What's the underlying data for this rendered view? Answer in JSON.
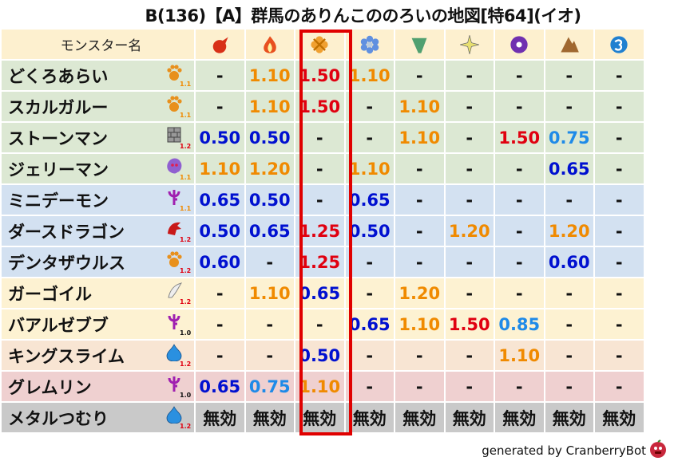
{
  "title": "B(136)【A】群馬のありんこののろいの地図[特64](イオ)",
  "header": {
    "name_label": "モンスター名",
    "elements": [
      "fire-ball-icon",
      "flame-icon",
      "explosion-icon",
      "ice-icon",
      "wind-icon",
      "light-icon",
      "dark-icon",
      "earth-icon",
      "water-icon"
    ],
    "element_colors": [
      "#d83018",
      "#e85020",
      "#f0a030",
      "#6090e0",
      "#50a070",
      "#e8e070",
      "#7030b0",
      "#a06830",
      "#2080d0"
    ],
    "highlighted_column": 2
  },
  "colors": {
    "o": "#f08a00",
    "r": "#e00010",
    "b": "#0010d0",
    "lb": "#1e8ae8",
    "k": "#111111"
  },
  "row_colors": {
    "green": "#dce8d3",
    "blue": "#d3e1f1",
    "yellow": "#fdf2d2",
    "peach": "#f8e5d3",
    "pink": "#efd0d0",
    "gray": "#c9c9c9"
  },
  "rows": [
    {
      "name": "どくろあらい",
      "type": "paw",
      "lvl": "1.1",
      "lvlc": "o",
      "bg": "green",
      "cells": [
        [
          "-",
          "k"
        ],
        [
          "1.10",
          "o"
        ],
        [
          "1.50",
          "r"
        ],
        [
          "1.10",
          "o"
        ],
        [
          "-",
          "k"
        ],
        [
          "-",
          "k"
        ],
        [
          "-",
          "k"
        ],
        [
          "-",
          "k"
        ],
        [
          "-",
          "k"
        ]
      ]
    },
    {
      "name": "スカルガルー",
      "type": "paw",
      "lvl": "1.1",
      "lvlc": "o",
      "bg": "green",
      "cells": [
        [
          "-",
          "k"
        ],
        [
          "1.10",
          "o"
        ],
        [
          "1.50",
          "r"
        ],
        [
          "-",
          "k"
        ],
        [
          "1.10",
          "o"
        ],
        [
          "-",
          "k"
        ],
        [
          "-",
          "k"
        ],
        [
          "-",
          "k"
        ],
        [
          "-",
          "k"
        ]
      ]
    },
    {
      "name": "ストーンマン",
      "type": "brick",
      "lvl": "1.2",
      "lvlc": "r",
      "bg": "green",
      "cells": [
        [
          "0.50",
          "b"
        ],
        [
          "0.50",
          "b"
        ],
        [
          "-",
          "k"
        ],
        [
          "-",
          "k"
        ],
        [
          "1.10",
          "o"
        ],
        [
          "-",
          "k"
        ],
        [
          "1.50",
          "r"
        ],
        [
          "0.75",
          "lb"
        ],
        [
          "-",
          "k"
        ]
      ]
    },
    {
      "name": "ジェリーマン",
      "type": "jelly",
      "lvl": "1.1",
      "lvlc": "o",
      "bg": "green",
      "cells": [
        [
          "1.10",
          "o"
        ],
        [
          "1.20",
          "o"
        ],
        [
          "-",
          "k"
        ],
        [
          "1.10",
          "o"
        ],
        [
          "-",
          "k"
        ],
        [
          "-",
          "k"
        ],
        [
          "-",
          "k"
        ],
        [
          "0.65",
          "b"
        ],
        [
          "-",
          "k"
        ]
      ]
    },
    {
      "name": "ミニデーモン",
      "type": "trident",
      "lvl": "1.1",
      "lvlc": "o",
      "bg": "blue",
      "cells": [
        [
          "0.65",
          "b"
        ],
        [
          "0.50",
          "b"
        ],
        [
          "-",
          "k"
        ],
        [
          "0.65",
          "b"
        ],
        [
          "-",
          "k"
        ],
        [
          "-",
          "k"
        ],
        [
          "-",
          "k"
        ],
        [
          "-",
          "k"
        ],
        [
          "-",
          "k"
        ]
      ]
    },
    {
      "name": "ダースドラゴン",
      "type": "dragon",
      "lvl": "1.2",
      "lvlc": "r",
      "bg": "blue",
      "cells": [
        [
          "0.50",
          "b"
        ],
        [
          "0.65",
          "b"
        ],
        [
          "1.25",
          "r"
        ],
        [
          "0.50",
          "b"
        ],
        [
          "-",
          "k"
        ],
        [
          "1.20",
          "o"
        ],
        [
          "-",
          "k"
        ],
        [
          "1.20",
          "o"
        ],
        [
          "-",
          "k"
        ]
      ]
    },
    {
      "name": "デンタザウルス",
      "type": "paw",
      "lvl": "1.2",
      "lvlc": "r",
      "bg": "blue",
      "cells": [
        [
          "0.60",
          "b"
        ],
        [
          "-",
          "k"
        ],
        [
          "1.25",
          "r"
        ],
        [
          "-",
          "k"
        ],
        [
          "-",
          "k"
        ],
        [
          "-",
          "k"
        ],
        [
          "-",
          "k"
        ],
        [
          "0.60",
          "b"
        ],
        [
          "-",
          "k"
        ]
      ]
    },
    {
      "name": "ガーゴイル",
      "type": "wing",
      "lvl": "1.2",
      "lvlc": "r",
      "bg": "yellow",
      "cells": [
        [
          "-",
          "k"
        ],
        [
          "1.10",
          "o"
        ],
        [
          "0.65",
          "b"
        ],
        [
          "-",
          "k"
        ],
        [
          "1.20",
          "o"
        ],
        [
          "-",
          "k"
        ],
        [
          "-",
          "k"
        ],
        [
          "-",
          "k"
        ],
        [
          "-",
          "k"
        ]
      ]
    },
    {
      "name": "バアルゼブブ",
      "type": "trident",
      "lvl": "1.0",
      "lvlc": "k",
      "bg": "yellow",
      "cells": [
        [
          "-",
          "k"
        ],
        [
          "-",
          "k"
        ],
        [
          "-",
          "k"
        ],
        [
          "0.65",
          "b"
        ],
        [
          "1.10",
          "o"
        ],
        [
          "1.50",
          "r"
        ],
        [
          "0.85",
          "lb"
        ],
        [
          "-",
          "k"
        ],
        [
          "-",
          "k"
        ]
      ]
    },
    {
      "name": "キングスライム",
      "type": "drop",
      "lvl": "1.2",
      "lvlc": "r",
      "bg": "peach",
      "cells": [
        [
          "-",
          "k"
        ],
        [
          "-",
          "k"
        ],
        [
          "0.50",
          "b"
        ],
        [
          "-",
          "k"
        ],
        [
          "-",
          "k"
        ],
        [
          "-",
          "k"
        ],
        [
          "1.10",
          "o"
        ],
        [
          "-",
          "k"
        ],
        [
          "-",
          "k"
        ]
      ]
    },
    {
      "name": "グレムリン",
      "type": "trident",
      "lvl": "1.0",
      "lvlc": "k",
      "bg": "pink",
      "cells": [
        [
          "0.65",
          "b"
        ],
        [
          "0.75",
          "lb"
        ],
        [
          "1.10",
          "o"
        ],
        [
          "-",
          "k"
        ],
        [
          "-",
          "k"
        ],
        [
          "-",
          "k"
        ],
        [
          "-",
          "k"
        ],
        [
          "-",
          "k"
        ],
        [
          "-",
          "k"
        ]
      ]
    },
    {
      "name": "メタルつむり",
      "type": "drop",
      "lvl": "1.2",
      "lvlc": "r",
      "bg": "gray",
      "cells": [
        [
          "無効",
          "k"
        ],
        [
          "無効",
          "k"
        ],
        [
          "無効",
          "k"
        ],
        [
          "無効",
          "k"
        ],
        [
          "無効",
          "k"
        ],
        [
          "無効",
          "k"
        ],
        [
          "無効",
          "k"
        ],
        [
          "無効",
          "k"
        ],
        [
          "無効",
          "k"
        ]
      ]
    }
  ],
  "footer": "generated by CranberryBot"
}
